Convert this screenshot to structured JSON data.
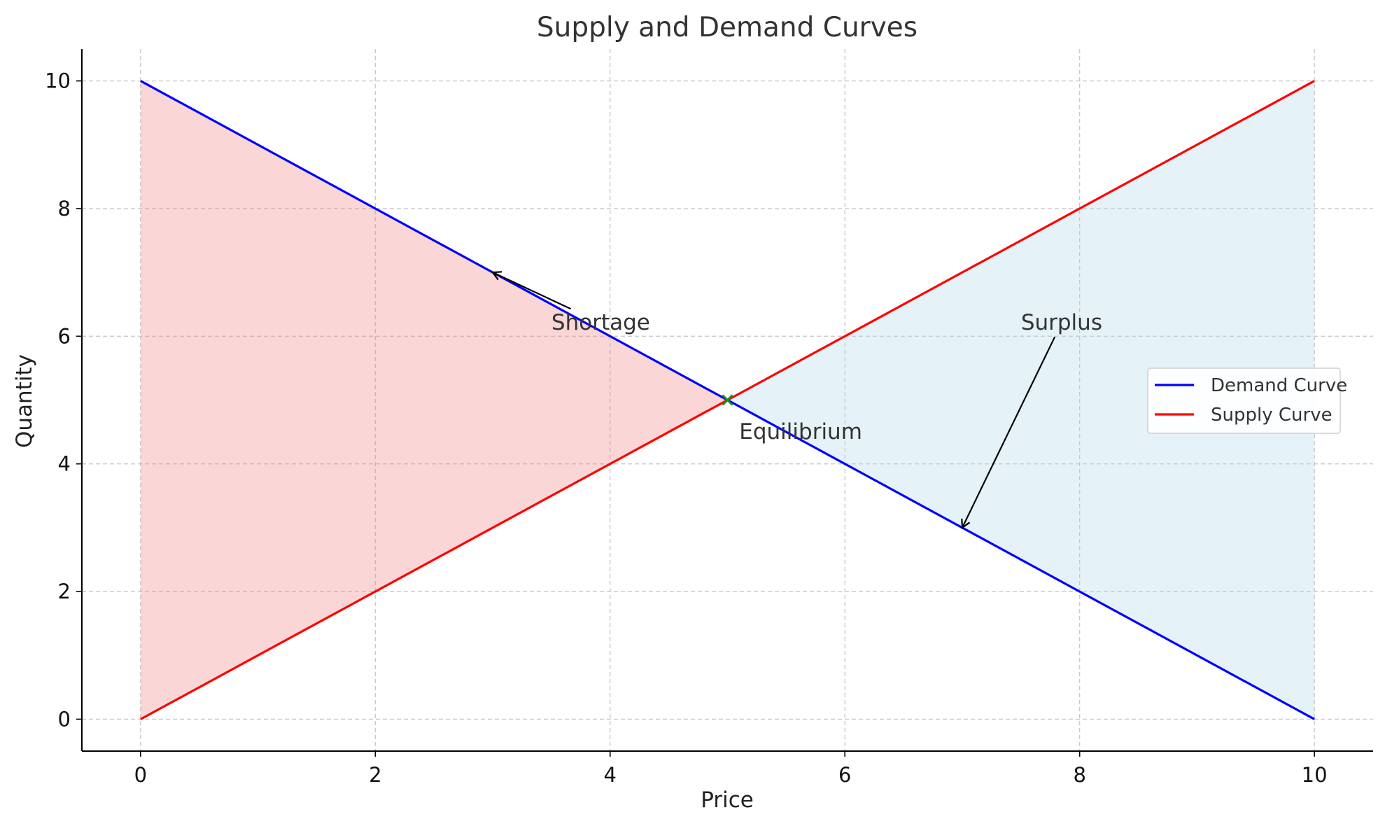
{
  "chart_data": {
    "type": "line",
    "title": "Supply and Demand Curves",
    "xlabel": "Price",
    "ylabel": "Quantity",
    "xlim": [
      -0.5,
      10.5
    ],
    "ylim": [
      -0.5,
      10.5
    ],
    "xticks": [
      0,
      2,
      4,
      6,
      8,
      10
    ],
    "yticks": [
      0,
      2,
      4,
      6,
      8,
      10
    ],
    "grid": true,
    "legend_position": "right",
    "series": [
      {
        "name": "Demand Curve",
        "color": "#0000ff",
        "x": [
          0,
          10
        ],
        "y": [
          10,
          0
        ]
      },
      {
        "name": "Supply Curve",
        "color": "#ff0000",
        "x": [
          0,
          10
        ],
        "y": [
          0,
          10
        ]
      }
    ],
    "fills": [
      {
        "region": "shortage",
        "color": "#f08080",
        "opacity": 0.32,
        "x": [
          0,
          5
        ],
        "y_upper": [
          10,
          5
        ],
        "y_lower": [
          0,
          5
        ]
      },
      {
        "region": "surplus",
        "color": "#add8e6",
        "opacity": 0.32,
        "x": [
          5,
          10
        ],
        "y_upper": [
          5,
          10
        ],
        "y_lower": [
          5,
          0
        ]
      }
    ],
    "equilibrium": {
      "x": 5,
      "y": 5,
      "marker": "x",
      "color": "#228b22",
      "label": "Equilibrium",
      "label_at": [
        5.1,
        4.5
      ]
    },
    "annotations": [
      {
        "text": "Shortage",
        "text_at": [
          3.5,
          6.1
        ],
        "arrow_to": [
          3,
          7
        ]
      },
      {
        "text": "Surplus",
        "text_at": [
          7.5,
          6.1
        ],
        "arrow_to": [
          7,
          3
        ]
      }
    ]
  }
}
